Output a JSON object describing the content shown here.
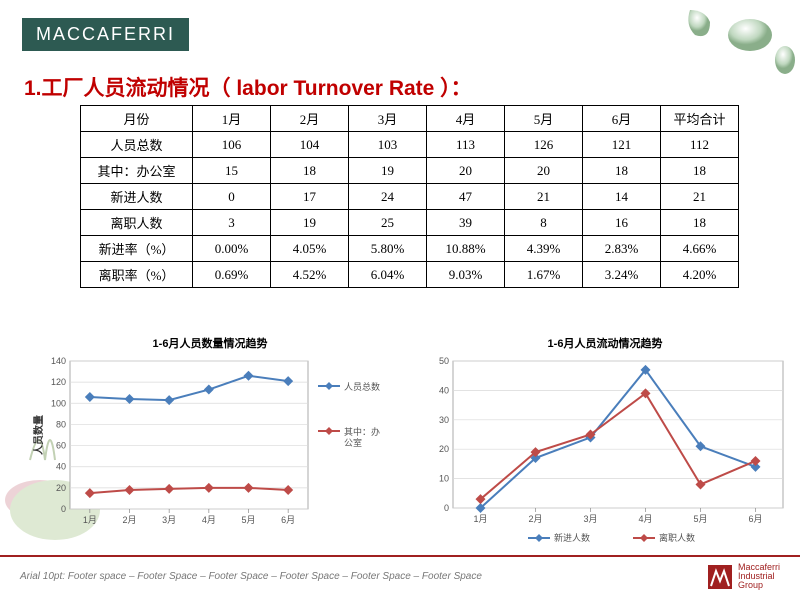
{
  "logo": "MACCAFERRI",
  "title": "1.工厂人员流动情况（ labor Turnover Rate ）：",
  "table": {
    "columns": [
      "月份",
      "1月",
      "2月",
      "3月",
      "4月",
      "5月",
      "6月",
      "平均合计"
    ],
    "rows": [
      [
        "人员总数",
        "106",
        "104",
        "103",
        "113",
        "126",
        "121",
        "112"
      ],
      [
        "其中：办公室",
        "15",
        "18",
        "19",
        "20",
        "20",
        "18",
        "18"
      ],
      [
        "新进人数",
        "0",
        "17",
        "24",
        "47",
        "21",
        "14",
        "21"
      ],
      [
        "离职人数",
        "3",
        "19",
        "25",
        "39",
        "8",
        "16",
        "18"
      ],
      [
        "新进率（%）",
        "0.00%",
        "4.05%",
        "5.80%",
        "10.88%",
        "4.39%",
        "2.83%",
        "4.66%"
      ],
      [
        "离职率（%）",
        "0.69%",
        "4.52%",
        "6.04%",
        "9.03%",
        "1.67%",
        "3.24%",
        "4.20%"
      ]
    ]
  },
  "chart1": {
    "title": "1-6月人员数量情况趋势",
    "type": "line",
    "xlabels": [
      "1月",
      "2月",
      "3月",
      "4月",
      "5月",
      "6月"
    ],
    "yaxis_label": "人员数量",
    "ylim": [
      0,
      140
    ],
    "ytick_step": 20,
    "series": [
      {
        "name": "人员总数",
        "color": "#4a7ebb",
        "values": [
          106,
          104,
          103,
          113,
          126,
          121
        ]
      },
      {
        "name": "其中：办公室",
        "color": "#be4b48",
        "values": [
          15,
          18,
          19,
          20,
          20,
          18
        ]
      }
    ],
    "marker": "diamond",
    "marker_size": 5,
    "line_width": 2,
    "grid_color": "#d9d9d9",
    "background": "#ffffff",
    "font_size": 9
  },
  "chart2": {
    "title": "1-6月人员流动情况趋势",
    "type": "line",
    "xlabels": [
      "1月",
      "2月",
      "3月",
      "4月",
      "5月",
      "6月"
    ],
    "ylim": [
      0,
      50
    ],
    "ytick_step": 10,
    "series": [
      {
        "name": "新进人数",
        "color": "#4a7ebb",
        "values": [
          0,
          17,
          24,
          47,
          21,
          14
        ]
      },
      {
        "name": "离职人数",
        "color": "#be4b48",
        "values": [
          3,
          19,
          25,
          39,
          8,
          16
        ]
      }
    ],
    "marker": "diamond",
    "marker_size": 5,
    "line_width": 2,
    "grid_color": "#d9d9d9",
    "background": "#ffffff",
    "font_size": 9
  },
  "footer": {
    "text": "Arial 10pt: Footer space –  Footer Space –  Footer Space –  Footer Space –  Footer Space –  Footer Space",
    "group_lines": [
      "Maccaferri",
      "Industrial",
      "Group"
    ]
  },
  "colors": {
    "logo_bg": "#2d5a52",
    "title": "#c00000",
    "footer_border": "#a02020"
  }
}
